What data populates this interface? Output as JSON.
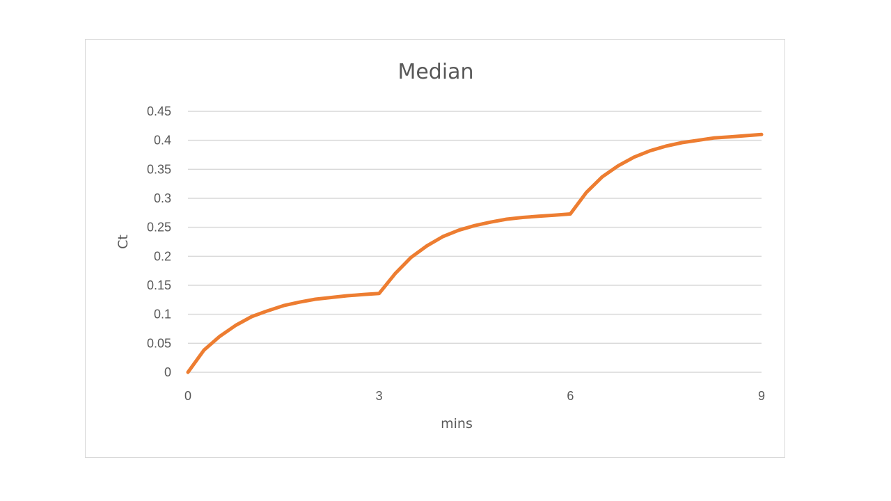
{
  "chart_data": {
    "type": "line",
    "title": "Median",
    "xlabel": "mins",
    "ylabel": "Ct",
    "xlim": [
      0,
      9
    ],
    "ylim": [
      0,
      0.45
    ],
    "x_ticks": [
      0,
      3,
      6,
      9
    ],
    "x_tick_labels": [
      "0",
      "3",
      "6",
      "9"
    ],
    "y_ticks": [
      0,
      0.05,
      0.1,
      0.15,
      0.2,
      0.25,
      0.3,
      0.35,
      0.4,
      0.45
    ],
    "y_tick_labels": [
      "0",
      "0.05",
      "0.1",
      "0.15",
      "0.2",
      "0.25",
      "0.3",
      "0.35",
      "0.4",
      "0.45"
    ],
    "grid": true,
    "legend": false,
    "series": [
      {
        "color": "#ED7D31",
        "x": [
          0,
          0.25,
          0.5,
          0.75,
          1.0,
          1.25,
          1.5,
          1.75,
          2.0,
          2.25,
          2.5,
          2.75,
          3.0,
          3.25,
          3.5,
          3.75,
          4.0,
          4.25,
          4.5,
          4.75,
          5.0,
          5.25,
          5.5,
          5.75,
          6.0,
          6.25,
          6.5,
          6.75,
          7.0,
          7.25,
          7.5,
          7.75,
          8.0,
          8.25,
          8.5,
          8.75,
          9.0
        ],
        "y": [
          0,
          0.038,
          0.062,
          0.081,
          0.096,
          0.106,
          0.115,
          0.121,
          0.126,
          0.129,
          0.132,
          0.134,
          0.136,
          0.17,
          0.198,
          0.218,
          0.234,
          0.245,
          0.253,
          0.259,
          0.264,
          0.267,
          0.269,
          0.271,
          0.273,
          0.31,
          0.337,
          0.356,
          0.371,
          0.382,
          0.39,
          0.396,
          0.4,
          0.404,
          0.406,
          0.408,
          0.41
        ]
      }
    ]
  }
}
